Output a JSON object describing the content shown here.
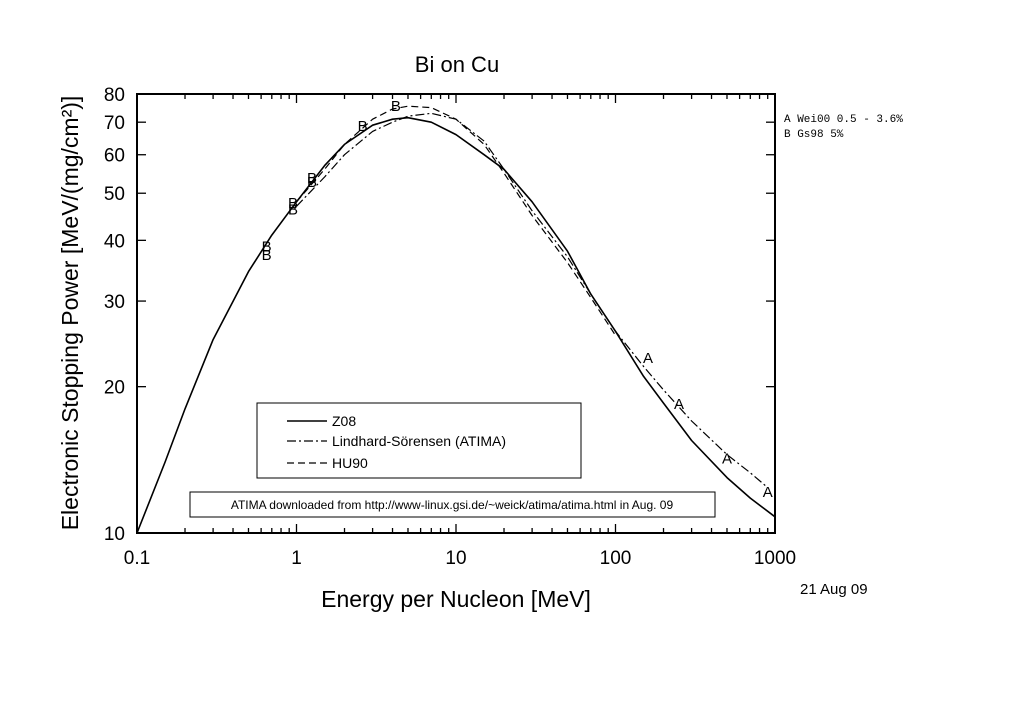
{
  "chart_data": {
    "type": "line",
    "title": "Bi on Cu",
    "xlabel": "Energy per Nucleon [MeV]",
    "ylabel": "Electronic Stopping Power [MeV/(mg/cm²)]",
    "xscale": "log",
    "yscale": "log",
    "xlim": [
      0.1,
      1000
    ],
    "ylim": [
      10,
      80
    ],
    "x_ticks": [
      {
        "value": 0.1,
        "label": "0.1"
      },
      {
        "value": 1,
        "label": "1"
      },
      {
        "value": 10,
        "label": "10"
      },
      {
        "value": 100,
        "label": "100"
      },
      {
        "value": 1000,
        "label": "1000"
      }
    ],
    "y_ticks": [
      {
        "value": 10,
        "label": "10"
      },
      {
        "value": 20,
        "label": "20"
      },
      {
        "value": 30,
        "label": "30"
      },
      {
        "value": 40,
        "label": "40"
      },
      {
        "value": 50,
        "label": "50"
      },
      {
        "value": 60,
        "label": "60"
      },
      {
        "value": 70,
        "label": "70"
      },
      {
        "value": 80,
        "label": "80"
      }
    ],
    "series": [
      {
        "name": "Z08",
        "style": "solid",
        "x": [
          0.1,
          0.15,
          0.2,
          0.3,
          0.5,
          0.7,
          1,
          1.5,
          2,
          3,
          4,
          5,
          7,
          10,
          15,
          20,
          30,
          50,
          70,
          100,
          150,
          200,
          300,
          500,
          700,
          1000
        ],
        "y": [
          10,
          14,
          18,
          25,
          34.5,
          41,
          48,
          57,
          63,
          69,
          71,
          71.5,
          70,
          66,
          60,
          56,
          48,
          38,
          31,
          26,
          21,
          18.5,
          15.5,
          13,
          11.8,
          10.8
        ]
      },
      {
        "name": "Lindhard-Sörensen (ATIMA)",
        "style": "dashdot",
        "x": [
          1,
          1.5,
          2,
          3,
          4,
          5,
          7,
          10,
          15,
          20,
          30,
          50,
          70,
          100,
          150,
          200,
          300,
          500,
          700,
          900
        ],
        "y": [
          47,
          54,
          60,
          67,
          70,
          72,
          73,
          71,
          64,
          56,
          46,
          37,
          31,
          26,
          22,
          19.7,
          17,
          14.5,
          13.3,
          12.4
        ]
      },
      {
        "name": "HU90",
        "style": "dashed",
        "x": [
          1,
          1.5,
          2,
          3,
          4,
          5,
          7,
          10,
          15,
          20,
          30,
          50,
          70,
          100
        ],
        "y": [
          48,
          56,
          63,
          71,
          74.5,
          75.5,
          75,
          71,
          63,
          55,
          45,
          36,
          30.5,
          25.5
        ]
      }
    ],
    "points": [
      {
        "label": "B",
        "x": 0.65,
        "y": 39
      },
      {
        "label": "B",
        "x": 0.65,
        "y": 37.5
      },
      {
        "label": "B",
        "x": 0.95,
        "y": 48
      },
      {
        "label": "B",
        "x": 0.95,
        "y": 46.5
      },
      {
        "label": "B",
        "x": 1.25,
        "y": 54
      },
      {
        "label": "B",
        "x": 1.25,
        "y": 53
      },
      {
        "label": "B",
        "x": 2.6,
        "y": 69
      },
      {
        "label": "B",
        "x": 4.2,
        "y": 76
      },
      {
        "label": "A",
        "x": 160,
        "y": 23
      },
      {
        "label": "A",
        "x": 250,
        "y": 18.5
      },
      {
        "label": "A",
        "x": 500,
        "y": 14.3
      },
      {
        "label": "A",
        "x": 900,
        "y": 12.2
      }
    ],
    "legend": {
      "placement": "lower-center",
      "entries": [
        "Z08",
        "Lindhard-Sörensen (ATIMA)",
        "HU90"
      ]
    },
    "note": "ATIMA downloaded from http://www-linux.gsi.de/~weick/atima/atima.html in Aug. 09",
    "references": [
      "A Wei00 0.5 - 3.6%",
      "B Gs98  5%"
    ],
    "date": "21 Aug 09"
  }
}
